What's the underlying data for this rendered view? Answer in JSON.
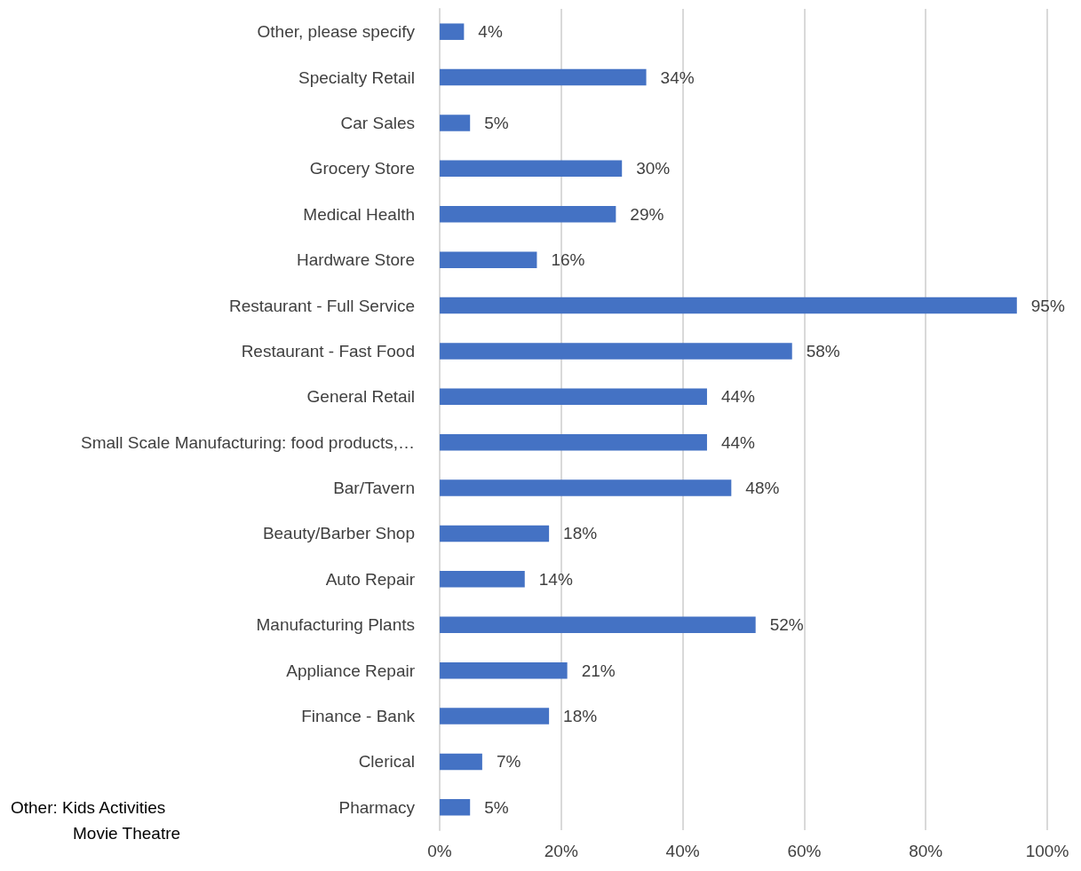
{
  "chart_data": {
    "type": "bar",
    "orientation": "horizontal",
    "categories": [
      "Other, please specify",
      "Specialty Retail",
      "Car Sales",
      "Grocery Store",
      "Medical Health",
      "Hardware Store",
      "Restaurant - Full Service",
      "Restaurant - Fast Food",
      "General Retail",
      "Small Scale Manufacturing: food products,…",
      "Bar/Tavern",
      "Beauty/Barber Shop",
      "Auto Repair",
      "Manufacturing Plants",
      "Appliance Repair",
      "Finance - Bank",
      "Clerical",
      "Pharmacy"
    ],
    "values": [
      4,
      34,
      5,
      30,
      29,
      16,
      95,
      58,
      44,
      44,
      48,
      18,
      14,
      52,
      21,
      18,
      7,
      5
    ],
    "value_labels": [
      "4%",
      "34%",
      "5%",
      "30%",
      "29%",
      "16%",
      "95%",
      "58%",
      "44%",
      "44%",
      "48%",
      "18%",
      "14%",
      "52%",
      "21%",
      "18%",
      "7%",
      "5%"
    ],
    "color": "#4472c4",
    "xlim": [
      0,
      100
    ],
    "xticks": [
      {
        "value": 0,
        "label": "0%"
      },
      {
        "value": 20,
        "label": "20%"
      },
      {
        "value": 40,
        "label": "40%"
      },
      {
        "value": 60,
        "label": "60%"
      },
      {
        "value": 80,
        "label": "80%"
      },
      {
        "value": 100,
        "label": "100%"
      }
    ],
    "grid": "x",
    "annotations": [
      "Other: Kids Activities",
      "Movie Theatre"
    ]
  }
}
